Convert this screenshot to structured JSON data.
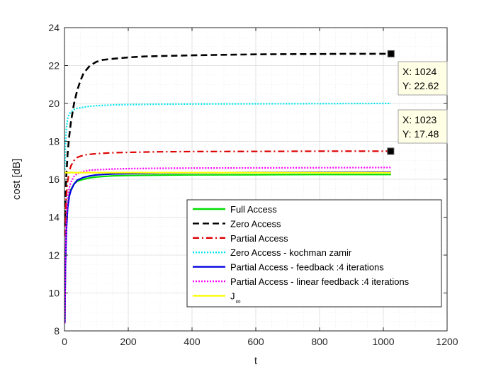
{
  "chart_data": {
    "type": "line",
    "xlabel": "t",
    "ylabel": "cost [dB]",
    "xlim": [
      0,
      1200
    ],
    "ylim": [
      8,
      24
    ],
    "xticks": [
      0,
      200,
      400,
      600,
      800,
      1000,
      1200
    ],
    "yticks": [
      8,
      10,
      12,
      14,
      16,
      18,
      20,
      22,
      24
    ],
    "xtick_labels": [
      "0",
      "200",
      "400",
      "600",
      "800",
      "1000",
      "1200"
    ],
    "ytick_labels": [
      "8",
      "10",
      "12",
      "14",
      "16",
      "18",
      "20",
      "22",
      "24"
    ],
    "grid": true,
    "minor_grid": true,
    "legend_position": "lower-right",
    "series": [
      {
        "name": "Full Access",
        "color": "#00dd00",
        "style": "solid",
        "x": [
          1,
          3,
          6,
          10,
          15,
          20,
          30,
          40,
          60,
          80,
          100,
          150,
          200,
          300,
          400,
          600,
          800,
          1024
        ],
        "y": [
          8.4,
          11.5,
          13.5,
          14.6,
          15.2,
          15.45,
          15.75,
          15.9,
          16.0,
          16.08,
          16.12,
          16.18,
          16.2,
          16.22,
          16.23,
          16.24,
          16.25,
          16.25
        ]
      },
      {
        "name": "Zero Access",
        "color": "#000000",
        "style": "dashed",
        "x": [
          1,
          5,
          10,
          15,
          20,
          30,
          40,
          50,
          60,
          80,
          100,
          120,
          150,
          200,
          250,
          300,
          400,
          500,
          600,
          700,
          800,
          900,
          1024
        ],
        "y": [
          13.5,
          16.0,
          17.4,
          18.3,
          19.0,
          20.0,
          20.7,
          21.2,
          21.6,
          22.0,
          22.2,
          22.3,
          22.35,
          22.43,
          22.48,
          22.5,
          22.54,
          22.57,
          22.59,
          22.6,
          22.61,
          22.62,
          22.62
        ]
      },
      {
        "name": "Partial Access",
        "color": "#dd0000",
        "style": "dashdot",
        "x": [
          1,
          5,
          10,
          15,
          20,
          30,
          40,
          50,
          70,
          100,
          150,
          200,
          300,
          400,
          600,
          800,
          1023
        ],
        "y": [
          13.0,
          15.0,
          15.9,
          16.4,
          16.7,
          17.0,
          17.15,
          17.22,
          17.3,
          17.35,
          17.4,
          17.42,
          17.45,
          17.46,
          17.47,
          17.48,
          17.48
        ]
      },
      {
        "name": "Zero Access - kochman zamir",
        "color": "#00e5ee",
        "style": "dotted",
        "x": [
          1,
          3,
          6,
          10,
          15,
          20,
          30,
          40,
          60,
          80,
          100,
          150,
          200,
          300,
          400,
          600,
          800,
          1024
        ],
        "y": [
          16.5,
          17.8,
          18.7,
          19.2,
          19.45,
          19.55,
          19.68,
          19.74,
          19.8,
          19.85,
          19.88,
          19.92,
          19.94,
          19.96,
          19.97,
          19.98,
          19.99,
          20.0
        ]
      },
      {
        "name": "Partial Access - feedback :4 iterations",
        "color": "#0000dd",
        "style": "solid",
        "x": [
          1,
          3,
          6,
          10,
          15,
          20,
          30,
          40,
          60,
          80,
          100,
          150,
          200,
          300,
          400,
          600,
          800,
          1024
        ],
        "y": [
          8.4,
          11.3,
          13.3,
          14.5,
          15.1,
          15.4,
          15.75,
          15.95,
          16.1,
          16.18,
          16.23,
          16.28,
          16.3,
          16.33,
          16.34,
          16.36,
          16.37,
          16.38
        ]
      },
      {
        "name": "Partial Access - linear feedback :4 iterations",
        "color": "#ff00ff",
        "style": "dotted",
        "x": [
          1,
          3,
          6,
          10,
          15,
          20,
          30,
          40,
          60,
          80,
          100,
          150,
          200,
          300,
          400,
          600,
          800,
          1024
        ],
        "y": [
          8.4,
          11.8,
          13.9,
          15.0,
          15.55,
          15.85,
          16.15,
          16.3,
          16.42,
          16.48,
          16.5,
          16.54,
          16.56,
          16.58,
          16.59,
          16.6,
          16.61,
          16.62
        ]
      },
      {
        "name": "J∞",
        "color": "#ffff00",
        "style": "solid",
        "x": [
          0,
          1024
        ],
        "y": [
          16.35,
          16.35
        ]
      }
    ],
    "legend_labels": [
      {
        "main": "Full Access",
        "sub": ""
      },
      {
        "main": "Zero Access",
        "sub": ""
      },
      {
        "main": "Partial Access",
        "sub": ""
      },
      {
        "main": "Zero Access - kochman zamir",
        "sub": ""
      },
      {
        "main": "Partial Access - feedback :4 iterations",
        "sub": ""
      },
      {
        "main": "Partial Access - linear feedback :4 iterations",
        "sub": ""
      },
      {
        "main": "J",
        "sub": "∞"
      }
    ],
    "datatips": [
      {
        "x": 1024,
        "y": 22.62,
        "text_x": "X: 1024",
        "text_y": "Y: 22.62"
      },
      {
        "x": 1023,
        "y": 17.48,
        "text_x": "X: 1023",
        "text_y": "Y: 17.48"
      }
    ]
  }
}
